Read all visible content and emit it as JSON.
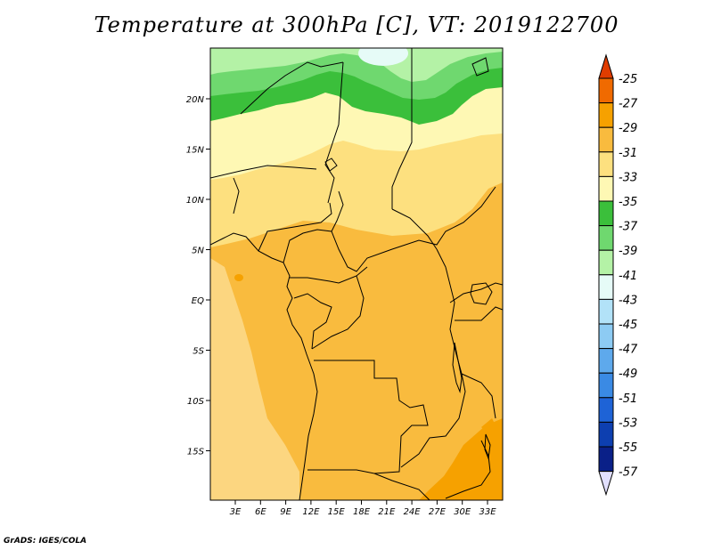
{
  "title": "Temperature at 300hPa [C], VT: 2019122700",
  "credit": "GrADS: IGES/COLA",
  "map": {
    "region": "Central Africa",
    "lon_ticks": [
      "3E",
      "6E",
      "9E",
      "12E",
      "15E",
      "18E",
      "21E",
      "24E",
      "27E",
      "30E",
      "33E"
    ],
    "lat_ticks": [
      "20N",
      "15N",
      "10N",
      "5N",
      "EQ",
      "5S",
      "10S",
      "15S"
    ],
    "lon_range": [
      0,
      35
    ],
    "lat_range": [
      -20,
      25
    ]
  },
  "colorbar": {
    "labels": [
      "-25",
      "-27",
      "-29",
      "-31",
      "-33",
      "-35",
      "-37",
      "-39",
      "-41",
      "-43",
      "-45",
      "-47",
      "-49",
      "-51",
      "-53",
      "-55",
      "-57"
    ],
    "colors": [
      "#e03c00",
      "#f06a00",
      "#f6a100",
      "#f9bb3e",
      "#fde07f",
      "#fef8b4",
      "#3bbf3b",
      "#6fd86f",
      "#b4f2a6",
      "#e6fbf7",
      "#b2e2f8",
      "#8dcbf3",
      "#5ea9ec",
      "#3a8ae4",
      "#1e63d6",
      "#0d3fb0",
      "#0a2088"
    ],
    "top_arrow_color": "#e03c00",
    "bottom_arrow_color": "#e2e0ff"
  }
}
